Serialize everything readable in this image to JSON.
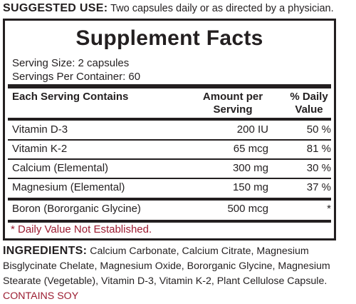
{
  "suggested_use": {
    "label": "SUGGESTED USE:",
    "text": "Two capsules daily or as directed by a physician."
  },
  "panel": {
    "title": "Supplement Facts",
    "serving_size": "Serving Size: 2 capsules",
    "servings_per_container": "Servings Per Container: 60",
    "columns": {
      "nutrient": "Each Serving Contains",
      "amount_line1": "Amount per",
      "amount_line2": "Serving",
      "dv_line1": "% Daily",
      "dv_line2": "Value"
    },
    "rows": [
      {
        "name": "Vitamin D-3",
        "amount": "200 IU",
        "dv": "50 %"
      },
      {
        "name": "Vitamin K-2",
        "amount": "65 mcg",
        "dv": "81 %"
      },
      {
        "name": "Calcium (Elemental)",
        "amount": "300 mg",
        "dv": "30 %"
      },
      {
        "name": "Magnesium (Elemental)",
        "amount": "150 mg",
        "dv": "37 %"
      },
      {
        "name": "Boron (Bororganic Glycine)",
        "amount": "500 mcg",
        "dv": "*"
      }
    ],
    "footnote": "* Daily Value Not Established."
  },
  "ingredients": {
    "label": "INGREDIENTS:",
    "text": "Calcium Carbonate, Calcium Citrate, Magnesium Bisglycinate Chelate, Magnesium Oxide, Bororganic Glycine, Magnesium Stearate (Vegetable), Vitamin D-3, Vitamin K-2, Plant Cellulose Capsule.",
    "allergen": "CONTAINS SOY"
  },
  "colors": {
    "text": "#231f20",
    "accent_red": "#9b1b30",
    "background": "#ffffff"
  }
}
